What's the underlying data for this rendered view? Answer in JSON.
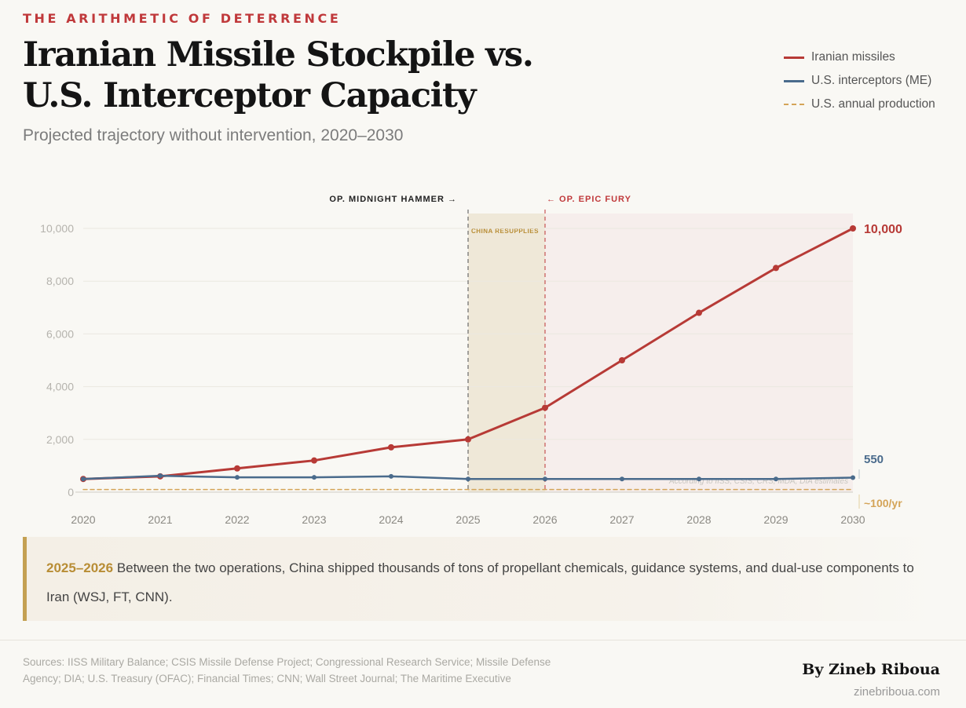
{
  "header": {
    "eyebrow": "THE ARITHMETIC OF DETERRENCE",
    "title": "Iranian Missile Stockpile vs. U.S. Interceptor Capacity",
    "subtitle": "Projected trajectory without intervention, 2020–2030"
  },
  "legend": [
    {
      "label": "Iranian missiles",
      "color": "#b73a36",
      "style": "solid"
    },
    {
      "label": "U.S. interceptors (ME)",
      "color": "#4a6b8c",
      "style": "solid"
    },
    {
      "label": "U.S. annual production",
      "color": "#d4a458",
      "style": "dashed"
    }
  ],
  "chart_data": {
    "type": "line",
    "x": [
      2020,
      2021,
      2022,
      2023,
      2024,
      2025,
      2026,
      2027,
      2028,
      2029,
      2030
    ],
    "xlim": [
      2020,
      2030
    ],
    "ylim": [
      0,
      10000
    ],
    "yticks": [
      0,
      2000,
      4000,
      6000,
      8000,
      10000
    ],
    "ytick_labels": [
      "0",
      "2,000",
      "4,000",
      "6,000",
      "8,000",
      "10,000"
    ],
    "series": [
      {
        "name": "Iranian missiles",
        "color": "#b73a36",
        "style": "solid",
        "values": [
          500,
          600,
          900,
          1200,
          1700,
          2000,
          3200,
          5000,
          6800,
          8500,
          10000
        ]
      },
      {
        "name": "U.S. interceptors (ME)",
        "color": "#4a6b8c",
        "style": "solid",
        "values": [
          500,
          620,
          560,
          560,
          600,
          500,
          500,
          500,
          500,
          500,
          550
        ]
      },
      {
        "name": "U.S. annual production",
        "color": "#d4a458",
        "style": "dashed",
        "values": [
          100,
          100,
          100,
          100,
          100,
          100,
          100,
          100,
          100,
          100,
          100
        ]
      }
    ],
    "end_labels": [
      {
        "series": "Iranian missiles",
        "text": "10,000"
      },
      {
        "series": "U.S. interceptors (ME)",
        "text": "550"
      },
      {
        "series": "U.S. annual production",
        "text": "~100/yr"
      }
    ],
    "events": [
      {
        "x": 2025,
        "label": "OP. MIDNIGHT HAMMER →",
        "color": "#555555"
      },
      {
        "x": 2026,
        "label": "← OP. EPIC FURY",
        "color": "#c0393b"
      }
    ],
    "shaded_regions": [
      {
        "from": 2025,
        "to": 2026,
        "label": "CHINA RESUPPLIES",
        "color": "#efe8d8"
      },
      {
        "from": 2026,
        "to": 2030,
        "label": "",
        "color": "#f6eeec"
      }
    ],
    "annotation": "According to IISS, CSIS, CRS, MDA, DIA estimates",
    "grid": true
  },
  "callout": {
    "year": "2025–2026",
    "text": " Between the two operations, China shipped thousands of tons of propellant chemicals, guidance systems, and dual-use components to Iran (WSJ, FT, CNN)."
  },
  "footer": {
    "sources": "Sources: IISS Military Balance; CSIS Missile Defense Project; Congressional Research Service; Missile Defense Agency; DIA; U.S. Treasury (OFAC); Financial Times; CNN; Wall Street Journal; The Maritime Executive",
    "byline": "By Zineb Riboua",
    "website": "zinebriboua.com"
  }
}
